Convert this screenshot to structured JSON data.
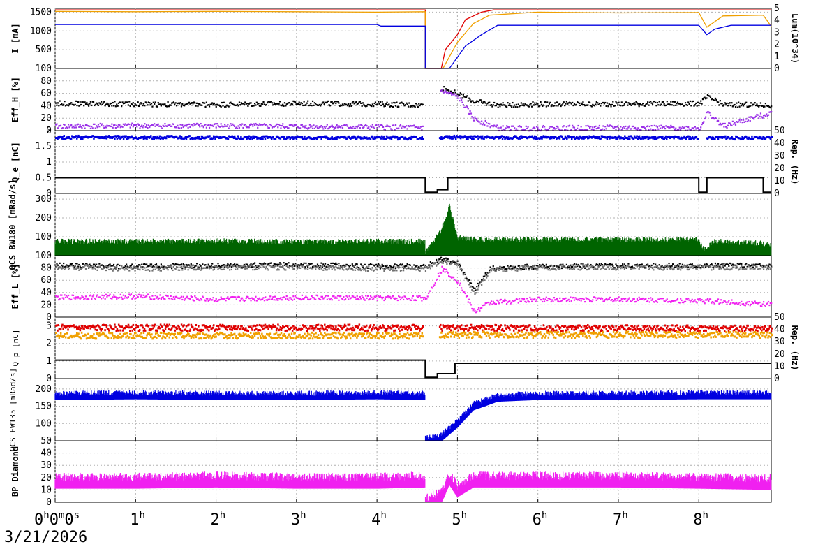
{
  "date_label": "3/21/2026",
  "x_ticks": [
    {
      "label": "0",
      "sup": "h",
      "rest": "0",
      "sup2": "m",
      "rest2": "0",
      "sup3": "s",
      "hour": 0
    },
    {
      "label": "1",
      "sup": "h",
      "hour": 1
    },
    {
      "label": "2",
      "sup": "h",
      "hour": 2
    },
    {
      "label": "3",
      "sup": "h",
      "hour": 3
    },
    {
      "label": "4",
      "sup": "h",
      "hour": 4
    },
    {
      "label": "5",
      "sup": "h",
      "hour": 5
    },
    {
      "label": "6",
      "sup": "h",
      "hour": 6
    },
    {
      "label": "7",
      "sup": "h",
      "hour": 7
    },
    {
      "label": "8",
      "sup": "h",
      "hour": 8
    }
  ],
  "colors": {
    "orange": "#f0a000",
    "red": "#e00000",
    "blue": "#0000e0",
    "black": "#000000",
    "purple": "#9a30e8",
    "green": "#006400",
    "gray": "#707070",
    "magenta": "#f020f0",
    "grid": "#b0b0b0"
  },
  "chart_data": [
    {
      "type": "line",
      "panel": "current",
      "ylabel": "I [mA]",
      "ylim": [
        0,
        1600
      ],
      "yticks": [
        "500",
        "1000",
        "1500"
      ],
      "y2label": "Lum(10^34)",
      "y2lim": [
        0,
        5
      ],
      "y2ticks": [
        "0",
        "1",
        "2",
        "3",
        "4",
        "5"
      ],
      "series": [
        {
          "color": "red",
          "points": [
            [
              0,
              1560
            ],
            [
              4.6,
              1560
            ],
            [
              4.6,
              0
            ],
            [
              4.8,
              0
            ],
            [
              4.85,
              500
            ],
            [
              5.0,
              900
            ],
            [
              5.1,
              1300
            ],
            [
              5.3,
              1500
            ],
            [
              5.45,
              1560
            ],
            [
              8.9,
              1560
            ]
          ]
        },
        {
          "color": "orange",
          "points": [
            [
              0,
              1520
            ],
            [
              1,
              1510
            ],
            [
              2,
              1520
            ],
            [
              3,
              1510
            ],
            [
              4,
              1500
            ],
            [
              4.6,
              1510
            ],
            [
              4.6,
              0
            ],
            [
              4.82,
              0
            ],
            [
              5.0,
              700
            ],
            [
              5.2,
              1200
            ],
            [
              5.4,
              1420
            ],
            [
              6,
              1500
            ],
            [
              7,
              1480
            ],
            [
              8,
              1490
            ],
            [
              8.1,
              1100
            ],
            [
              8.3,
              1400
            ],
            [
              8.8,
              1420
            ],
            [
              8.9,
              1120
            ]
          ]
        },
        {
          "color": "blue",
          "points": [
            [
              0,
              1170
            ],
            [
              4.0,
              1170
            ],
            [
              4.05,
              1130
            ],
            [
              4.6,
              1130
            ],
            [
              4.6,
              0
            ],
            [
              4.9,
              0
            ],
            [
              5.1,
              600
            ],
            [
              5.3,
              900
            ],
            [
              5.5,
              1150
            ],
            [
              8.0,
              1150
            ],
            [
              8.1,
              900
            ],
            [
              8.2,
              1050
            ],
            [
              8.4,
              1150
            ],
            [
              8.9,
              1150
            ]
          ]
        }
      ]
    },
    {
      "type": "scatter",
      "panel": "effh",
      "ylabel": "Eff_H [%]",
      "ylim": [
        0,
        100
      ],
      "yticks": [
        "0",
        "20",
        "40",
        "60",
        "80",
        "100"
      ],
      "series": [
        {
          "color": "black",
          "points": [
            [
              0,
              45
            ],
            [
              1,
              44
            ],
            [
              2,
              43
            ],
            [
              3,
              45
            ],
            [
              4,
              44
            ],
            [
              4.55,
              42
            ],
            [
              4.8,
              70
            ],
            [
              5.0,
              60
            ],
            [
              5.2,
              48
            ],
            [
              5.5,
              42
            ],
            [
              6,
              44
            ],
            [
              7,
              44
            ],
            [
              8,
              45
            ],
            [
              8.1,
              55
            ],
            [
              8.3,
              43
            ],
            [
              8.9,
              42
            ]
          ]
        },
        {
          "color": "purple",
          "points": [
            [
              0,
              8
            ],
            [
              1,
              9
            ],
            [
              2,
              9
            ],
            [
              3,
              8
            ],
            [
              4,
              7
            ],
            [
              4.55,
              6
            ],
            [
              4.8,
              65
            ],
            [
              5.0,
              55
            ],
            [
              5.2,
              20
            ],
            [
              5.5,
              5
            ],
            [
              6,
              5
            ],
            [
              7,
              6
            ],
            [
              8,
              5
            ],
            [
              8.1,
              30
            ],
            [
              8.3,
              8
            ],
            [
              8.9,
              30
            ]
          ]
        }
      ]
    },
    {
      "type": "line",
      "panel": "qe",
      "ylabel": "Q_e [nC]",
      "ylim": [
        0,
        2
      ],
      "yticks": [
        "0",
        "0.5",
        "1",
        "1.5",
        "2"
      ],
      "y2label": "Rep. (Hz)",
      "y2lim": [
        0,
        50
      ],
      "y2ticks": [
        "0",
        "10",
        "20",
        "30",
        "40",
        "50"
      ],
      "series": [
        {
          "color": "blue",
          "points": [
            [
              0,
              1.82
            ],
            [
              4.55,
              1.8
            ],
            [
              4.75,
              1.82
            ],
            [
              8.9,
              1.8
            ]
          ]
        },
        {
          "color": "black",
          "points": [
            [
              0,
              12.5
            ],
            [
              4.6,
              12.5
            ],
            [
              4.6,
              1
            ],
            [
              4.75,
              1
            ],
            [
              4.75,
              3
            ],
            [
              4.88,
              3
            ],
            [
              4.88,
              12.5
            ],
            [
              8.0,
              12.5
            ],
            [
              8.0,
              1
            ],
            [
              8.1,
              1
            ],
            [
              8.1,
              12.5
            ],
            [
              8.8,
              12.5
            ],
            [
              8.8,
              1
            ],
            [
              8.9,
              1
            ]
          ]
        }
      ]
    },
    {
      "type": "line",
      "panel": "qcs_bw",
      "ylabel": "QCS BW180 [mRad/s]",
      "ylim": [
        0,
        330
      ],
      "yticks": [
        "100",
        "200",
        "300"
      ],
      "series": [
        {
          "color": "green",
          "points": [
            [
              0,
              60
            ],
            [
              1,
              60
            ],
            [
              2,
              62
            ],
            [
              3,
              58
            ],
            [
              4,
              60
            ],
            [
              4.6,
              60
            ],
            [
              4.6,
              0
            ],
            [
              4.8,
              120
            ],
            [
              4.9,
              250
            ],
            [
              5.0,
              80
            ],
            [
              5.3,
              70
            ],
            [
              6,
              70
            ],
            [
              7,
              70
            ],
            [
              8,
              70
            ],
            [
              8.05,
              20
            ],
            [
              8.2,
              60
            ],
            [
              8.8,
              50
            ],
            [
              8.9,
              40
            ]
          ]
        }
      ]
    },
    {
      "type": "scatter",
      "panel": "effl",
      "ylabel": "Eff_L [%]",
      "ylim": [
        0,
        100
      ],
      "yticks": [
        "0",
        "20",
        "40",
        "60",
        "80",
        "100"
      ],
      "series": [
        {
          "color": "black",
          "points": [
            [
              0,
              85
            ],
            [
              1,
              84
            ],
            [
              2,
              85
            ],
            [
              3,
              86
            ],
            [
              4,
              84
            ],
            [
              4.6,
              84
            ],
            [
              4.8,
              95
            ],
            [
              5.0,
              90
            ],
            [
              5.2,
              45
            ],
            [
              5.4,
              80
            ],
            [
              6,
              84
            ],
            [
              7,
              85
            ],
            [
              8,
              85
            ],
            [
              8.9,
              85
            ]
          ]
        },
        {
          "color": "gray",
          "points": [
            [
              0,
              82
            ],
            [
              1,
              80
            ],
            [
              2,
              82
            ],
            [
              3,
              82
            ],
            [
              4,
              80
            ],
            [
              4.6,
              80
            ],
            [
              4.8,
              92
            ],
            [
              5.0,
              88
            ],
            [
              5.2,
              40
            ],
            [
              5.4,
              78
            ],
            [
              6,
              82
            ],
            [
              7,
              82
            ],
            [
              8,
              82
            ],
            [
              8.9,
              82
            ]
          ]
        },
        {
          "color": "magenta",
          "points": [
            [
              0,
              33
            ],
            [
              1,
              35
            ],
            [
              2,
              30
            ],
            [
              3,
              33
            ],
            [
              4,
              32
            ],
            [
              4.6,
              32
            ],
            [
              4.8,
              80
            ],
            [
              5.0,
              60
            ],
            [
              5.2,
              10
            ],
            [
              5.4,
              25
            ],
            [
              6,
              30
            ],
            [
              7,
              30
            ],
            [
              8,
              28
            ],
            [
              8.9,
              22
            ]
          ]
        }
      ]
    },
    {
      "type": "line",
      "panel": "qp",
      "ylabel": "Q_p [nC]",
      "ylim": [
        0,
        3.5
      ],
      "yticks": [
        "0",
        "1",
        "2",
        "3"
      ],
      "y2label": "Rep. (Hz)",
      "y2lim": [
        0,
        50
      ],
      "y2ticks": [
        "0",
        "10",
        "20",
        "30",
        "40",
        "50"
      ],
      "series": [
        {
          "color": "red",
          "points": [
            [
              0,
              2.95
            ],
            [
              4.55,
              2.95
            ],
            [
              4.75,
              2.95
            ],
            [
              8.9,
              2.9
            ]
          ]
        },
        {
          "color": "orange",
          "points": [
            [
              0,
              2.5
            ],
            [
              4.55,
              2.5
            ],
            [
              4.75,
              2.55
            ],
            [
              8.9,
              2.55
            ]
          ]
        },
        {
          "color": "black",
          "points": [
            [
              0,
              15
            ],
            [
              4.6,
              15
            ],
            [
              4.6,
              1
            ],
            [
              4.75,
              1
            ],
            [
              4.75,
              4
            ],
            [
              4.97,
              4
            ],
            [
              4.97,
              12.5
            ],
            [
              8.9,
              12.5
            ]
          ]
        }
      ]
    },
    {
      "type": "line",
      "panel": "qcs_fw",
      "ylabel": "QCS FW135 [mRad/s]",
      "ylim": [
        50,
        230
      ],
      "yticks": [
        "50",
        "100",
        "150",
        "200"
      ],
      "series": [
        {
          "color": "blue",
          "points": [
            [
              0,
              180
            ],
            [
              1,
              182
            ],
            [
              2,
              180
            ],
            [
              3,
              180
            ],
            [
              4,
              182
            ],
            [
              4.6,
              180
            ],
            [
              4.6,
              50
            ],
            [
              4.8,
              60
            ],
            [
              5.0,
              100
            ],
            [
              5.2,
              150
            ],
            [
              5.5,
              175
            ],
            [
              6,
              180
            ],
            [
              7,
              180
            ],
            [
              8,
              182
            ],
            [
              8.9,
              182
            ]
          ]
        }
      ]
    },
    {
      "type": "area",
      "panel": "bp",
      "ylabel": "BP Diamond",
      "ylim": [
        0,
        50
      ],
      "yticks": [
        "0",
        "10",
        "20",
        "30",
        "40"
      ],
      "series": [
        {
          "color": "magenta",
          "points": [
            [
              0,
              17
            ],
            [
              1,
              17
            ],
            [
              2,
              18
            ],
            [
              3,
              17
            ],
            [
              4,
              17
            ],
            [
              4.6,
              18
            ],
            [
              4.6,
              0
            ],
            [
              4.8,
              5
            ],
            [
              4.9,
              20
            ],
            [
              5.0,
              10
            ],
            [
              5.2,
              18
            ],
            [
              6,
              18
            ],
            [
              7,
              18
            ],
            [
              8,
              17
            ],
            [
              8.9,
              16
            ]
          ]
        }
      ]
    }
  ]
}
